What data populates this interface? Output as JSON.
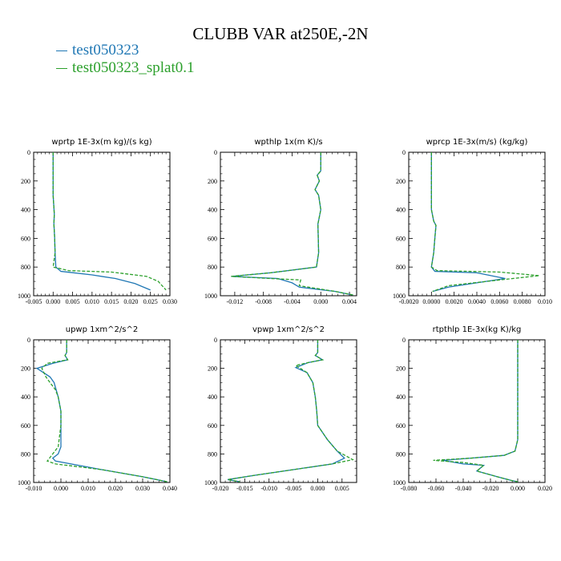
{
  "title": "CLUBB VAR at250E,-2N",
  "legend": [
    {
      "name": "test050323",
      "color": "#1f77b4"
    },
    {
      "name": "test050323_splat0.1",
      "color": "#2ca02c"
    }
  ],
  "chart_data": [
    {
      "type": "line",
      "title": "wprtp  1E-3x(m kg)/(s kg)",
      "xlim": [
        -0.005,
        0.03
      ],
      "ylim": [
        1000,
        0
      ],
      "y_reversed": true,
      "x_ticks": [
        "-0.005",
        "0.000",
        "0.005",
        "0.010",
        "0.015",
        "0.020",
        "0.025",
        "0.030"
      ],
      "x_tick_values": [
        -0.005,
        0.0,
        0.005,
        0.01,
        0.015,
        0.02,
        0.025,
        0.03
      ],
      "y_ticks": [
        "0",
        "200",
        "400",
        "600",
        "800",
        "1000"
      ],
      "y_tick_values": [
        0,
        200,
        400,
        600,
        800,
        1000
      ],
      "series": [
        {
          "name": "test050323",
          "color": "#1f77b4",
          "dashed": false,
          "x": [
            0.0,
            0.0,
            0.0003,
            0.0002,
            0.0004,
            0.0005,
            0.0007,
            0.002,
            0.01,
            0.016,
            0.021,
            0.025
          ],
          "y": [
            0,
            300,
            430,
            500,
            600,
            700,
            800,
            830,
            855,
            880,
            915,
            960
          ]
        },
        {
          "name": "test050323_splat0.1",
          "color": "#2ca02c",
          "dashed": true,
          "x": [
            0.0,
            0.0,
            0.0003,
            0.0002,
            0.0004,
            0.0005,
            0.0,
            0.004,
            0.015,
            0.024,
            0.027,
            0.029
          ],
          "y": [
            0,
            300,
            430,
            500,
            600,
            700,
            800,
            825,
            835,
            865,
            900,
            960
          ]
        }
      ]
    },
    {
      "type": "line",
      "title": "wpthlp  1x(m K)/s",
      "xlim": [
        -0.014,
        0.005
      ],
      "ylim": [
        1000,
        0
      ],
      "y_reversed": true,
      "x_ticks": [
        "-0.012",
        "-0.008",
        "-0.004",
        "0.000",
        "0.004"
      ],
      "x_tick_values": [
        -0.012,
        -0.008,
        -0.004,
        0.0,
        0.004
      ],
      "y_ticks": [
        "0",
        "200",
        "400",
        "600",
        "800",
        "1000"
      ],
      "y_tick_values": [
        0,
        200,
        400,
        600,
        800,
        1000
      ],
      "series": [
        {
          "name": "test050323",
          "color": "#1f77b4",
          "dashed": false,
          "x": [
            0.0,
            0.0,
            -0.0005,
            -0.0002,
            -0.0008,
            -0.0003,
            0.0,
            -0.0004,
            -0.0003,
            -0.0006,
            -0.007,
            -0.0125,
            -0.006,
            -0.004,
            -0.003,
            0.002,
            0.0045
          ],
          "y": [
            0,
            130,
            160,
            200,
            260,
            300,
            400,
            500,
            700,
            800,
            840,
            865,
            880,
            910,
            940,
            970,
            995
          ]
        },
        {
          "name": "test050323_splat0.1",
          "color": "#2ca02c",
          "dashed": true,
          "x": [
            0.0,
            0.0,
            -0.0005,
            -0.0002,
            -0.0008,
            -0.0003,
            0.0,
            -0.0004,
            -0.0003,
            -0.0006,
            -0.007,
            -0.0125,
            -0.007,
            -0.0028,
            -0.003,
            0.002,
            0.0045
          ],
          "y": [
            0,
            130,
            160,
            200,
            260,
            300,
            400,
            500,
            700,
            800,
            840,
            865,
            880,
            890,
            930,
            970,
            995
          ]
        }
      ]
    },
    {
      "type": "line",
      "title": "wprcp  1E-3x(m/s) (kg/kg)",
      "xlim": [
        -0.002,
        0.01
      ],
      "ylim": [
        1000,
        0
      ],
      "y_reversed": true,
      "x_ticks": [
        "-0.0020",
        "0.0000",
        "0.0020",
        "0.0040",
        "0.0060",
        "0.0080",
        "0.010"
      ],
      "x_tick_values": [
        -0.002,
        0.0,
        0.002,
        0.004,
        0.006,
        0.008,
        0.01
      ],
      "y_ticks": [
        "0",
        "200",
        "400",
        "600",
        "800",
        "1000"
      ],
      "y_tick_values": [
        0,
        200,
        400,
        600,
        800,
        1000
      ],
      "series": [
        {
          "name": "test050323",
          "color": "#1f77b4",
          "dashed": false,
          "x": [
            0.0,
            0.0,
            0.0002,
            0.0004,
            0.0003,
            0.0002,
            0.0,
            0.0003,
            0.004,
            0.0065,
            0.004,
            0.0015,
            0.0001
          ],
          "y": [
            0,
            400,
            480,
            510,
            600,
            700,
            800,
            830,
            840,
            880,
            910,
            940,
            970
          ]
        },
        {
          "name": "test050323_splat0.1",
          "color": "#2ca02c",
          "dashed": true,
          "x": [
            0.0,
            0.0,
            0.0002,
            0.0004,
            0.0003,
            0.0002,
            0.0,
            0.0005,
            0.006,
            0.0095,
            0.006,
            0.0015,
            0.0001
          ],
          "y": [
            0,
            400,
            480,
            510,
            600,
            700,
            800,
            825,
            835,
            860,
            890,
            930,
            970
          ]
        }
      ]
    },
    {
      "type": "line",
      "title": "upwp  1xm^2/s^2",
      "xlim": [
        -0.01,
        0.04
      ],
      "ylim": [
        1000,
        0
      ],
      "y_reversed": true,
      "x_ticks": [
        "-0.010",
        "0.000",
        "0.010",
        "0.020",
        "0.030",
        "0.040"
      ],
      "x_tick_values": [
        -0.01,
        0.0,
        0.01,
        0.02,
        0.03,
        0.04
      ],
      "y_ticks": [
        "0",
        "200",
        "400",
        "600",
        "800",
        "1000"
      ],
      "y_tick_values": [
        0,
        200,
        400,
        600,
        800,
        1000
      ],
      "series": [
        {
          "name": "test050323",
          "color": "#1f77b4",
          "dashed": false,
          "x": [
            0.0021,
            0.0021,
            0.0015,
            0.0025,
            -0.003,
            -0.0088,
            -0.004,
            -0.0025,
            -0.001,
            0.0,
            0.0,
            0.0,
            -0.001,
            -0.003,
            -0.002,
            0.015,
            0.03,
            0.039
          ],
          "y": [
            0,
            90,
            110,
            140,
            165,
            200,
            260,
            300,
            400,
            500,
            600,
            750,
            800,
            830,
            850,
            910,
            960,
            995
          ]
        },
        {
          "name": "test050323_splat0.1",
          "color": "#2ca02c",
          "dashed": true,
          "x": [
            0.0021,
            0.0021,
            0.0015,
            0.0025,
            -0.005,
            -0.007,
            -0.0055,
            -0.004,
            -0.002,
            -0.001,
            0.0,
            0.0,
            -0.001,
            -0.005,
            -0.002,
            0.015,
            0.03,
            0.039
          ],
          "y": [
            0,
            90,
            110,
            140,
            165,
            200,
            260,
            300,
            350,
            400,
            500,
            600,
            750,
            850,
            870,
            910,
            960,
            995
          ]
        }
      ]
    },
    {
      "type": "line",
      "title": "vpwp  1xm^2/s^2",
      "xlim": [
        -0.02,
        0.008
      ],
      "ylim": [
        1000,
        0
      ],
      "y_reversed": true,
      "x_ticks": [
        "-0.020",
        "-0.015",
        "-0.010",
        "-0.005",
        "0.000",
        "0.005"
      ],
      "x_tick_values": [
        -0.02,
        -0.015,
        -0.01,
        -0.005,
        0.0,
        0.005
      ],
      "y_ticks": [
        "0",
        "200",
        "400",
        "600",
        "800",
        "1000"
      ],
      "y_tick_values": [
        0,
        200,
        400,
        600,
        800,
        1000
      ],
      "series": [
        {
          "name": "test050323",
          "color": "#1f77b4",
          "dashed": false,
          "x": [
            0.0,
            0.0,
            -0.0005,
            0.001,
            -0.002,
            -0.0045,
            -0.0022,
            -0.001,
            -0.0005,
            -0.0002,
            0.0,
            0.002,
            0.004,
            0.0055,
            0.003,
            -0.005,
            -0.013,
            -0.0185,
            -0.016
          ],
          "y": [
            0,
            90,
            110,
            140,
            160,
            195,
            230,
            300,
            400,
            500,
            600,
            700,
            780,
            830,
            870,
            910,
            950,
            980,
            995
          ]
        },
        {
          "name": "test050323_splat0.1",
          "color": "#2ca02c",
          "dashed": true,
          "x": [
            0.0,
            0.0,
            -0.0005,
            0.001,
            -0.002,
            -0.0045,
            -0.0022,
            -0.001,
            -0.0005,
            -0.0002,
            0.0,
            0.002,
            0.004,
            0.0072,
            0.003,
            -0.005,
            -0.013,
            -0.0185,
            -0.016
          ],
          "y": [
            0,
            90,
            110,
            140,
            160,
            180,
            230,
            300,
            400,
            500,
            600,
            700,
            780,
            840,
            870,
            910,
            950,
            980,
            995
          ]
        }
      ]
    },
    {
      "type": "line",
      "title": "rtpthlp  1E-3x(kg K)/kg",
      "xlim": [
        -0.08,
        0.02
      ],
      "ylim": [
        1000,
        0
      ],
      "y_reversed": true,
      "x_ticks": [
        "-0.080",
        "-0.060",
        "-0.040",
        "-0.020",
        "0.000",
        "0.020"
      ],
      "x_tick_values": [
        -0.08,
        -0.06,
        -0.04,
        -0.02,
        0.0,
        0.02
      ],
      "y_ticks": [
        "0",
        "200",
        "400",
        "600",
        "800",
        "1000"
      ],
      "y_tick_values": [
        0,
        200,
        400,
        600,
        800,
        1000
      ],
      "series": [
        {
          "name": "test050323",
          "color": "#1f77b4",
          "dashed": false,
          "x": [
            0.0,
            0.0,
            0.0,
            -0.002,
            -0.01,
            -0.035,
            -0.055,
            -0.04,
            -0.025,
            -0.03,
            -0.015,
            -0.005,
            0.0
          ],
          "y": [
            0,
            400,
            700,
            780,
            810,
            830,
            845,
            870,
            880,
            920,
            960,
            985,
            995
          ]
        },
        {
          "name": "test050323_splat0.1",
          "color": "#2ca02c",
          "dashed": true,
          "x": [
            0.0,
            0.0,
            0.0,
            -0.002,
            -0.01,
            -0.035,
            -0.062,
            -0.04,
            -0.025,
            -0.03,
            -0.015,
            -0.005,
            0.0
          ],
          "y": [
            0,
            400,
            700,
            780,
            810,
            830,
            845,
            860,
            880,
            920,
            960,
            985,
            995
          ]
        }
      ]
    }
  ]
}
